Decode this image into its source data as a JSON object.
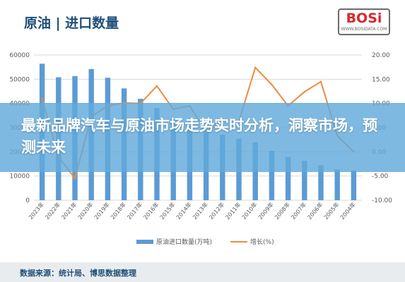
{
  "header": {
    "title": "原油 | 进口数量",
    "logo_text": "BOSi",
    "logo_subtext": "WWW.BOSIDATA.COM"
  },
  "headline": "最新品牌汽车与原油市场走势实时分析，洞察市场，预测未来",
  "source_label": "数据来源：统计局、博思数据整理",
  "colors": {
    "bar": "#5b9bd5",
    "line": "#ed8b3f",
    "axis_text": "#595959",
    "grid": "#d9d9d9",
    "overlay": "#62aadb"
  },
  "chart_data": {
    "type": "bar",
    "categories": [
      "2023年",
      "2022年",
      "2021年",
      "2020年",
      "2019年",
      "2018年",
      "2017年",
      "2016年",
      "2015年",
      "2014年",
      "2013年",
      "2012年",
      "2011年",
      "2010年",
      "2009年",
      "2008年",
      "2007年",
      "2006年",
      "2005年",
      "2004年"
    ],
    "series": [
      {
        "name": "原油进口数量(万吨)",
        "type": "bar",
        "axis": "left",
        "values": [
          56400,
          50800,
          51300,
          54200,
          50600,
          46200,
          41900,
          38100,
          33500,
          30800,
          28200,
          27100,
          25400,
          23900,
          20400,
          17900,
          16300,
          14500,
          12700,
          12300
        ]
      },
      {
        "name": "增长(%)",
        "type": "line",
        "axis": "right",
        "values": [
          11.0,
          -1.0,
          -5.5,
          7.3,
          9.5,
          10.1,
          10.0,
          13.6,
          8.8,
          9.5,
          4.0,
          6.8,
          6.3,
          17.4,
          13.9,
          9.5,
          12.4,
          14.5,
          3.3,
          0
        ]
      }
    ],
    "left_axis": {
      "ylim": [
        0,
        60000
      ],
      "ticks": [
        "0",
        "10000",
        "20000",
        "30000",
        "40000",
        "50000",
        "60000"
      ]
    },
    "right_axis": {
      "ylim": [
        -10,
        20
      ],
      "ticks": [
        "-10.00",
        "-5.00",
        "0.00",
        "5.00",
        "10.00",
        "15.00",
        "20.00"
      ]
    },
    "grid": true,
    "legend_position": "bottom"
  }
}
